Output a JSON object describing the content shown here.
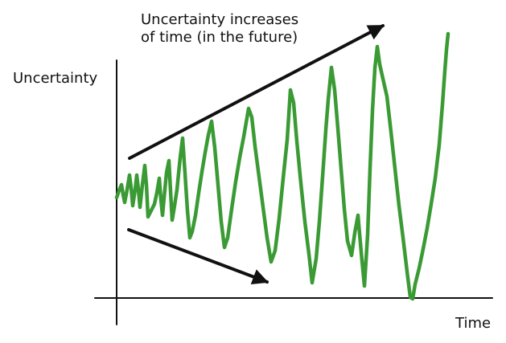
{
  "annotation": {
    "line1": "Uncertainty increases",
    "line2": "of time (in the future)"
  },
  "axes": {
    "ylabel": "Uncertainty",
    "xlabel": "Time"
  },
  "colors": {
    "wave": "#3a9a34",
    "axis": "#111111",
    "arrow": "#111111"
  },
  "icons": {
    "upper_arrow": "arrow-up-right-icon",
    "lower_arrow": "arrow-down-right-icon"
  }
}
